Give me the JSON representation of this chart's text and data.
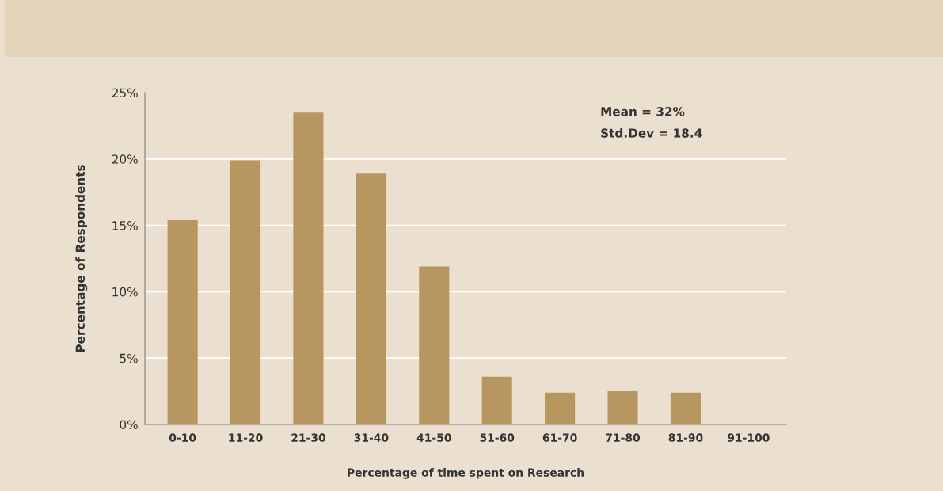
{
  "chart_data": {
    "type": "bar",
    "xlabel": "Percentage of time spent on Research",
    "ylabel": "Percentage of Respondents",
    "categories": [
      "0-10",
      "11-20",
      "21-30",
      "31-40",
      "41-50",
      "51-60",
      "61-70",
      "71-80",
      "81-90",
      "91-100"
    ],
    "values": [
      15.4,
      19.9,
      23.5,
      18.9,
      11.9,
      3.6,
      2.4,
      2.5,
      2.4,
      0
    ],
    "color": "#b8965f",
    "ylim": [
      0,
      25
    ],
    "yticks": [
      {
        "value": 0,
        "label": "0%"
      },
      {
        "value": 5,
        "label": "5%"
      },
      {
        "value": 10,
        "label": "10%"
      },
      {
        "value": 15,
        "label": "15%"
      },
      {
        "value": 20,
        "label": "20%"
      },
      {
        "value": 25,
        "label": "25%"
      }
    ],
    "grid": "y",
    "annotations": [
      "Mean = 32%",
      "Std.Dev = 18.4"
    ]
  }
}
